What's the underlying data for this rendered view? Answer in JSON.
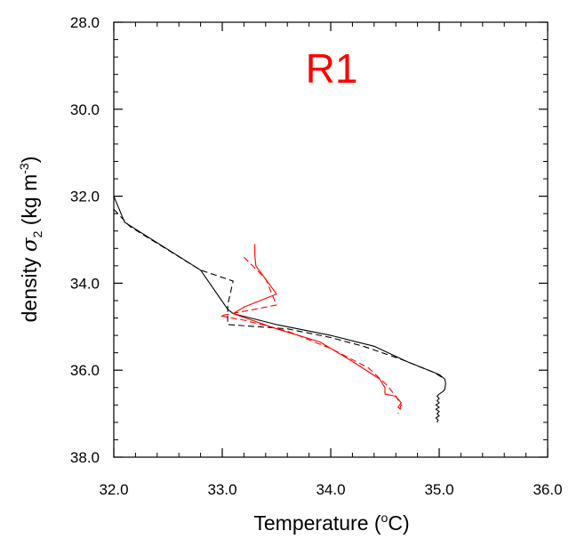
{
  "chart_data": {
    "type": "line",
    "title": "R1",
    "xlabel": "Temperature (°C)",
    "ylabel": "density σ2 (kg m-3)",
    "xlim": [
      32.0,
      36.0
    ],
    "ylim": [
      38.0,
      28.0
    ],
    "y_inverted": true,
    "x_ticks": [
      "32.0",
      "33.0",
      "34.0",
      "35.0",
      "36.0"
    ],
    "y_ticks": [
      "28.0",
      "30.0",
      "32.0",
      "34.0",
      "36.0",
      "38.0"
    ],
    "grid": false,
    "colors": {
      "title": "#ff0000",
      "black_series": "#000000",
      "red_series": "#ff0000"
    },
    "series": [
      {
        "color": "#000000",
        "dash": "solid",
        "x": [
          32.0,
          32.1,
          32.8,
          33.05,
          33.1,
          33.5,
          34.0,
          34.4,
          34.7,
          35.0,
          35.05,
          35.06,
          35.05,
          35.03,
          35.0,
          34.98,
          35.0,
          34.98,
          35.0,
          34.97,
          35.0,
          34.97,
          35.0,
          34.98,
          35.0,
          34.97,
          34.99,
          34.98
        ],
        "y": [
          32.0,
          32.6,
          33.7,
          34.6,
          34.7,
          34.95,
          35.2,
          35.45,
          35.8,
          36.1,
          36.2,
          36.3,
          36.45,
          36.5,
          36.55,
          36.6,
          36.65,
          36.7,
          36.75,
          36.8,
          36.85,
          36.9,
          36.95,
          37.0,
          37.05,
          37.1,
          37.15,
          37.2
        ]
      },
      {
        "color": "#000000",
        "dash": "dashed",
        "x": [
          32.0,
          32.15,
          32.8,
          33.1,
          33.05,
          33.05,
          33.6,
          34.0,
          34.3,
          34.65,
          34.95,
          35.05
        ],
        "y": [
          32.3,
          32.7,
          33.7,
          33.95,
          34.5,
          34.95,
          35.05,
          35.25,
          35.45,
          35.75,
          36.05,
          36.2
        ]
      },
      {
        "color": "#ff0000",
        "dash": "solid",
        "x": [
          33.3,
          33.3,
          33.31,
          33.5,
          33.2,
          33.1,
          33.5,
          33.9,
          34.2,
          34.45,
          34.5,
          34.5,
          34.6,
          34.65,
          34.62,
          34.65
        ],
        "y": [
          33.1,
          33.35,
          33.6,
          34.25,
          34.55,
          34.7,
          35.05,
          35.35,
          35.8,
          36.2,
          36.4,
          36.55,
          36.6,
          36.75,
          36.85,
          36.9
        ]
      },
      {
        "color": "#ff0000",
        "dash": "dashed",
        "x": [
          33.2,
          33.4,
          33.5,
          33.3,
          32.98,
          33.2,
          33.6,
          34.0,
          34.35,
          34.52,
          34.6,
          34.65,
          34.62
        ],
        "y": [
          33.4,
          33.9,
          34.5,
          34.6,
          34.75,
          34.85,
          35.1,
          35.5,
          35.95,
          36.35,
          36.6,
          36.8,
          37.0
        ]
      }
    ]
  },
  "labels": {
    "title": "R1",
    "xlabel_main": "Temperature (",
    "xlabel_sup": "o",
    "xlabel_unit": "C)",
    "ylabel_main": "density ",
    "ylabel_sigma": "σ",
    "ylabel_sub": "2",
    "ylabel_unit": " (kg m",
    "ylabel_sup": "-3",
    "ylabel_end": ")"
  }
}
